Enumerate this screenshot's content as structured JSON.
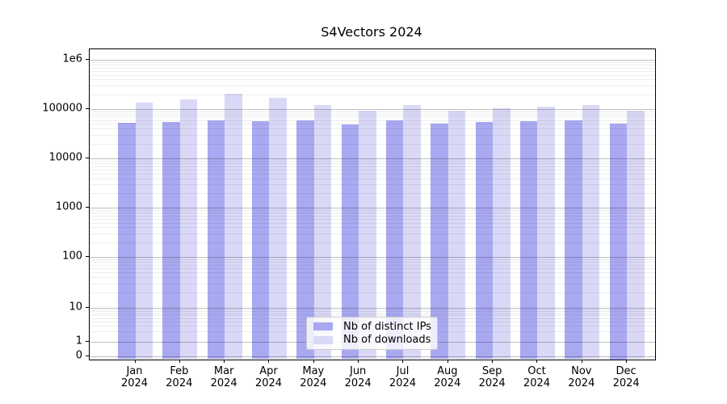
{
  "chart_data": {
    "type": "bar",
    "title": "S4Vectors 2024",
    "x_labels": [
      "Jan",
      "Feb",
      "Mar",
      "Apr",
      "May",
      "Jun",
      "Jul",
      "Aug",
      "Sep",
      "Oct",
      "Nov",
      "Dec"
    ],
    "x_year": "2024",
    "y_tick_labels": [
      "0",
      "1",
      "10",
      "100",
      "1000",
      "10000",
      "100000",
      "1e6"
    ],
    "y_scale": "log with 0 baseline (symlog-style)",
    "ylim": [
      0,
      1660000
    ],
    "grid": "horizontal major and minor gridlines drawn over bars",
    "legend_position": "inside plot, lower center",
    "series": [
      {
        "name": "Nb of distinct IPs",
        "color": "#a9a9f1",
        "values": [
          53000,
          54000,
          59500,
          56000,
          59500,
          49000,
          59500,
          51000,
          54500,
          58000,
          59500,
          50000
        ]
      },
      {
        "name": "Nb of downloads",
        "color": "#d9d9f7",
        "values": [
          137000,
          157500,
          207500,
          170000,
          119500,
          94000,
          119500,
          94000,
          103000,
          112000,
          120000,
          94000
        ]
      }
    ]
  },
  "colors": {
    "background": "#ffffff",
    "axis": "#000000",
    "grid_major": "rgba(0,0,0,0.25)",
    "grid_minor": "rgba(0,0,0,0.07)",
    "legend_border": "#cccccc"
  }
}
